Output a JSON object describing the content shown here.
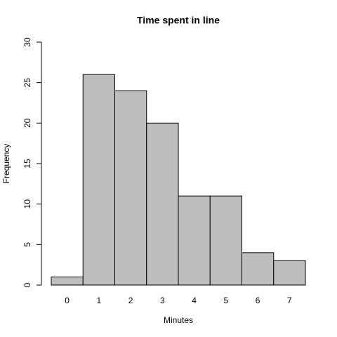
{
  "chart_data": {
    "type": "bar",
    "title": "Time spent in line",
    "x_label": "Minutes",
    "y_label": "Frequency",
    "categories": [
      "0",
      "1",
      "2",
      "3",
      "4",
      "5",
      "6",
      "7"
    ],
    "values": [
      1,
      26,
      24,
      20,
      11,
      11,
      4,
      3
    ],
    "color": "#bebebe",
    "ylim": [
      0,
      30
    ],
    "yticks": [
      0,
      5,
      10,
      15,
      20,
      25,
      30
    ],
    "grid": false
  }
}
